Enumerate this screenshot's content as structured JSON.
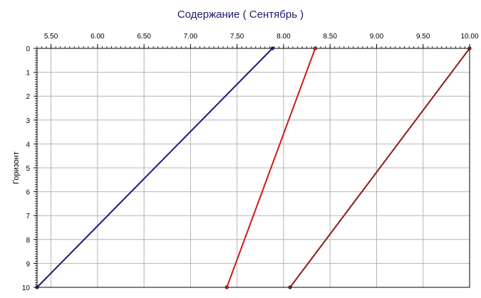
{
  "chart_data": {
    "type": "line",
    "title": "Содержание    ( Сентябрь )",
    "ylabel": "Горизонт",
    "xlabel": "",
    "x_axis_position": "top",
    "y_axis_inverted": true,
    "xlim": [
      5.35,
      10.0
    ],
    "ylim": [
      0,
      10
    ],
    "x_ticks": [
      "5.50",
      "6.00",
      "6.50",
      "7.00",
      "7.50",
      "8.00",
      "8.50",
      "9.00",
      "9.50",
      "10.00"
    ],
    "y_ticks": [
      "0",
      "1",
      "2",
      "3",
      "4",
      "5",
      "6",
      "7",
      "8",
      "9",
      "10"
    ],
    "grid": true,
    "legend": "none",
    "series": [
      {
        "color": "#1a1a80",
        "points": [
          [
            7.88,
            0
          ],
          [
            5.35,
            10
          ]
        ]
      },
      {
        "color": "#cc1a1a",
        "points": [
          [
            8.34,
            0
          ],
          [
            7.39,
            10
          ]
        ]
      },
      {
        "color": "#8b1a1a",
        "points": [
          [
            10.0,
            0
          ],
          [
            8.07,
            10
          ]
        ]
      }
    ]
  }
}
